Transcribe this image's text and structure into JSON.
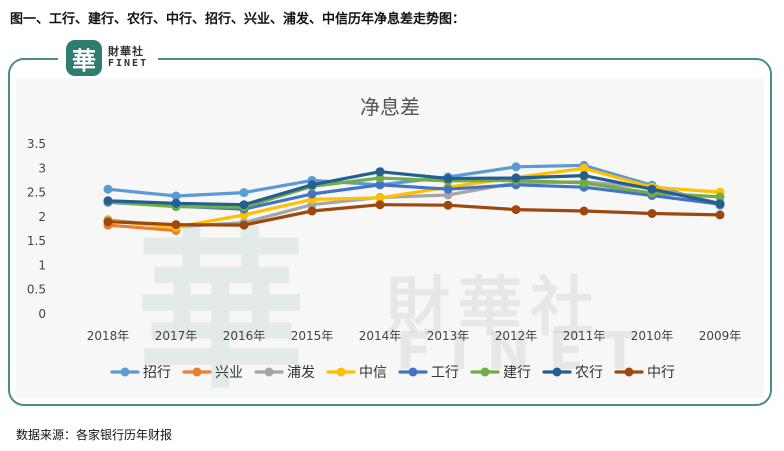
{
  "heading": "图一、工行、建行、农行、中行、招行、兴业、浦发、中信历年净息差走势图：",
  "logo": {
    "badge": "華",
    "cn": "財華社",
    "en": "FINET"
  },
  "watermark": {
    "glyph": "華",
    "cn": "財華社",
    "en": "FINET"
  },
  "source": "数据来源：各家银行历年财报",
  "chart_data": {
    "type": "line",
    "title": "净息差",
    "categories": [
      "2018年",
      "2017年",
      "2016年",
      "2015年",
      "2014年",
      "2013年",
      "2012年",
      "2011年",
      "2010年",
      "2009年"
    ],
    "ylim": [
      0,
      3.5
    ],
    "yticks": [
      "0",
      "0.5",
      "1",
      "1.5",
      "2",
      "2.5",
      "3",
      "3.5"
    ],
    "ytick_values": [
      0,
      0.5,
      1,
      1.5,
      2,
      2.5,
      3,
      3.5
    ],
    "grid": false,
    "legend_position": "bottom",
    "series": [
      {
        "name": "招行",
        "color": "#5b9bd5",
        "values": [
          2.57,
          2.43,
          2.5,
          2.75,
          2.66,
          2.82,
          3.03,
          3.06,
          2.65,
          2.24
        ]
      },
      {
        "name": "兴业",
        "color": "#ed7d31",
        "values": [
          1.83,
          1.72,
          null,
          null,
          null,
          null,
          null,
          null,
          null,
          null
        ]
      },
      {
        "name": "浦发",
        "color": "#a5a5a5",
        "values": [
          1.94,
          1.8,
          1.88,
          2.25,
          2.4,
          2.45,
          2.7,
          2.72,
          2.6,
          2.28
        ]
      },
      {
        "name": "中信",
        "color": "#ffc000",
        "values": [
          1.92,
          1.79,
          2.04,
          2.36,
          2.39,
          2.61,
          2.81,
          3.0,
          2.61,
          2.51
        ]
      },
      {
        "name": "工行",
        "color": "#4472c4",
        "values": [
          2.3,
          2.22,
          2.16,
          2.47,
          2.66,
          2.57,
          2.66,
          2.61,
          2.44,
          2.26
        ]
      },
      {
        "name": "建行",
        "color": "#70ad47",
        "values": [
          2.31,
          2.21,
          2.2,
          2.63,
          2.8,
          2.74,
          2.75,
          2.7,
          2.49,
          2.41
        ]
      },
      {
        "name": "农行",
        "color": "#255e91",
        "values": [
          2.33,
          2.28,
          2.25,
          2.66,
          2.93,
          2.79,
          2.8,
          2.85,
          2.57,
          2.27
        ]
      },
      {
        "name": "中行",
        "color": "#9e480e",
        "values": [
          1.9,
          1.84,
          1.83,
          2.12,
          2.25,
          2.24,
          2.15,
          2.12,
          2.07,
          2.04
        ]
      }
    ]
  }
}
